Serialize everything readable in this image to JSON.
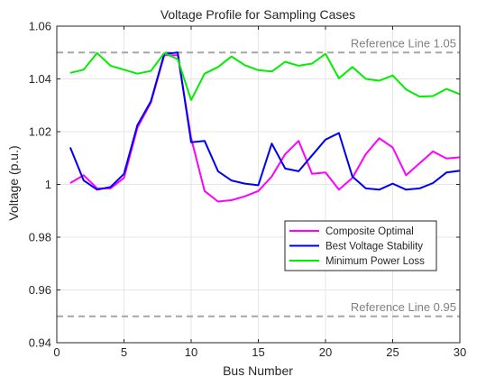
{
  "chart_data": {
    "type": "line",
    "title": "Voltage Profile for Sampling Cases",
    "xlabel": "Bus Number",
    "ylabel": "Voltage (p.u.)",
    "xlim": [
      0,
      30
    ],
    "ylim": [
      0.94,
      1.06
    ],
    "xticks": [
      0,
      5,
      10,
      15,
      20,
      25,
      30
    ],
    "yticks": [
      0.94,
      0.96,
      0.98,
      1.0,
      1.02,
      1.04,
      1.06
    ],
    "xtick_labels": [
      "0",
      "5",
      "10",
      "15",
      "20",
      "25",
      "30"
    ],
    "ytick_labels": [
      "0.94",
      "0.96",
      "0.98",
      "1",
      "1.02",
      "1.04",
      "1.06"
    ],
    "grid": true,
    "legend_position": "right, lower-middle",
    "x": [
      1,
      2,
      3,
      4,
      5,
      6,
      7,
      8,
      9,
      10,
      11,
      12,
      13,
      14,
      15,
      16,
      17,
      18,
      19,
      20,
      21,
      22,
      23,
      24,
      25,
      26,
      27,
      28,
      29,
      30
    ],
    "series": [
      {
        "name": "Composite Optimal",
        "color": "#ff00ff",
        "values": [
          1.0005,
          1.0035,
          0.9985,
          0.9985,
          1.0025,
          1.0215,
          1.031,
          1.049,
          1.049,
          1.0175,
          0.9975,
          0.9935,
          0.994,
          0.9955,
          0.9975,
          1.003,
          1.0115,
          1.0165,
          1.004,
          1.0045,
          0.998,
          1.0025,
          1.0115,
          1.0175,
          1.014,
          1.0035,
          1.008,
          1.0125,
          1.0098,
          1.0103
        ]
      },
      {
        "name": "Best Voltage Stability",
        "color": "#0000ee",
        "values": [
          1.014,
          1.0015,
          0.998,
          0.999,
          1.004,
          1.0225,
          1.0315,
          1.0495,
          1.05,
          1.016,
          1.0165,
          1.005,
          1.0015,
          1.0003,
          0.9997,
          1.0155,
          1.006,
          1.005,
          1.011,
          1.017,
          1.0195,
          1.003,
          0.9985,
          0.998,
          1.0003,
          0.998,
          0.9985,
          1.0005,
          1.0045,
          1.0052
        ]
      },
      {
        "name": "Minimum Power Loss",
        "color": "#00ee00",
        "values": [
          1.0423,
          1.0435,
          1.0498,
          1.045,
          1.0435,
          1.042,
          1.043,
          1.0498,
          1.0475,
          1.032,
          1.042,
          1.0445,
          1.0485,
          1.0452,
          1.0433,
          1.0428,
          1.0465,
          1.045,
          1.0458,
          1.0495,
          1.0402,
          1.0445,
          1.04,
          1.0393,
          1.0413,
          1.036,
          1.0333,
          1.0335,
          1.0362,
          1.0342
        ]
      }
    ],
    "reference_lines": [
      {
        "label": "Reference Line 1.05",
        "y": 1.05,
        "color": "#a6a6a6"
      },
      {
        "label": "Reference Line 0.95",
        "y": 0.95,
        "color": "#a6a6a6"
      }
    ]
  }
}
